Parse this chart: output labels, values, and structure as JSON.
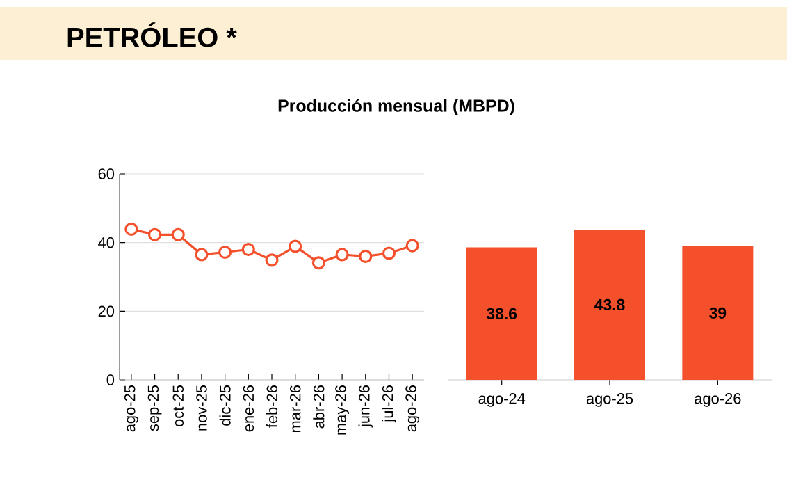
{
  "chart_data": [
    {
      "type": "line",
      "title": "PETRÓLEO *",
      "subtitle": "Producción mensual (MBPD)",
      "categories": [
        "ago-25",
        "sep-25",
        "oct-25",
        "nov-25",
        "dic-25",
        "ene-26",
        "feb-26",
        "mar-26",
        "abr-26",
        "may-26",
        "jun-26",
        "jul-26",
        "ago-26"
      ],
      "values": [
        43.9,
        42.3,
        42.3,
        36.5,
        37.2,
        38.0,
        34.9,
        38.9,
        34.1,
        36.5,
        36.0,
        36.9,
        39.1
      ],
      "color": "#f4502c",
      "ylim": [
        0,
        60
      ],
      "yticks": [
        0,
        20,
        40,
        60
      ],
      "grid": "y",
      "marker": "circle"
    },
    {
      "type": "bar",
      "categories": [
        "ago-24",
        "ago-25",
        "ago-26"
      ],
      "values": [
        38.6,
        43.8,
        39
      ],
      "color": "#f4502c",
      "ylim": [
        0,
        60
      ],
      "data_labels": true,
      "tick_labels": "x"
    }
  ]
}
